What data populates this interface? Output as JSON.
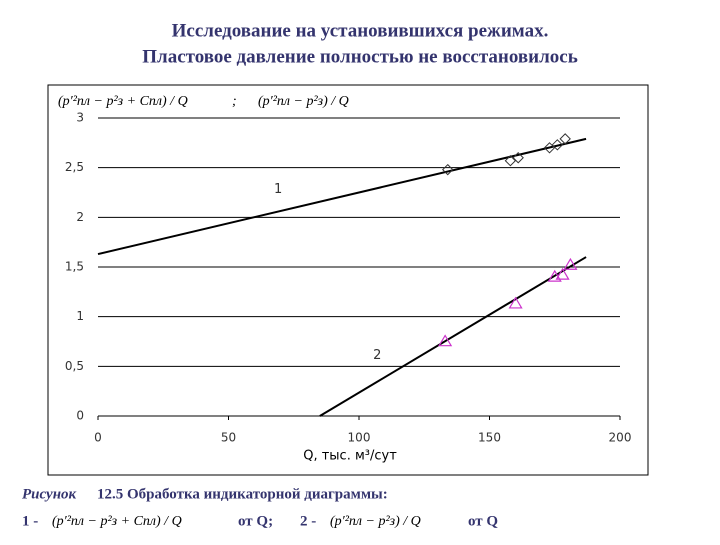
{
  "chart_data": {
    "type": "line",
    "title": [
      "Исследование на установившихся режимах.",
      "Пластовое давление полностью не восстановилось"
    ],
    "legend_text": [
      "(p′²пл − p²з + Cпл) / Q",
      ";",
      "(p′²пл − p²з) / Q"
    ],
    "xlabel": "Q, тыс. м³/сут",
    "xlim": [
      0,
      200
    ],
    "xticks": [
      0,
      50,
      100,
      150,
      200
    ],
    "ylim": [
      0,
      3
    ],
    "yticks": [
      0,
      {
        "value": 0.5,
        "label": "0,5"
      },
      1,
      {
        "value": 1.5,
        "label": "1,5"
      },
      2,
      {
        "value": 2.5,
        "label": "2,5"
      },
      3
    ],
    "grid": true,
    "series": [
      {
        "style": "line",
        "color": "#000000",
        "x": [
          0,
          187
        ],
        "values": [
          1.63,
          2.79
        ]
      },
      {
        "style": "line",
        "color": "#000000",
        "x": [
          85,
          187
        ],
        "values": [
          0,
          1.6
        ]
      },
      {
        "style": "diamond",
        "color": "#333333",
        "x": [
          134,
          158,
          161,
          173,
          176,
          179
        ],
        "values": [
          2.48,
          2.57,
          2.6,
          2.7,
          2.73,
          2.79
        ]
      },
      {
        "style": "triangle",
        "color": "#cc33cc",
        "x": [
          133,
          160,
          175,
          178,
          181
        ],
        "values": [
          0.75,
          1.13,
          1.4,
          1.42,
          1.52
        ]
      }
    ],
    "annotations": [
      {
        "text": "1",
        "x": 69,
        "y": 2.28
      },
      {
        "text": "2",
        "x": 107,
        "y": 0.61
      }
    ]
  },
  "caption": {
    "prefix": "Рисунок",
    "text": "12.5 Обработка индикаторной диаграммы:",
    "line2": [
      "1 -",
      "(p′²пл − p²з + Cпл) / Q",
      "от Q;",
      "2 -",
      "(p′²пл − p²з) / Q",
      "от Q"
    ]
  }
}
